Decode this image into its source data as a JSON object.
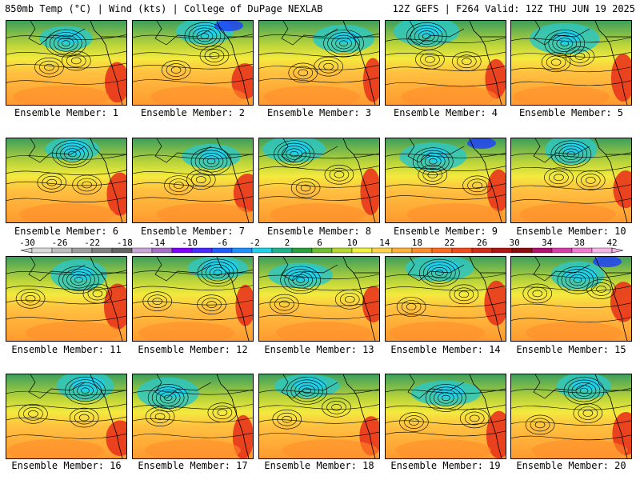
{
  "header": {
    "left_title": "850mb Temp (°C) | Wind (kts) | College of DuPage NEXLAB",
    "right_title": "12Z GEFS | F264 Valid: 12Z THU JUN 19 2025"
  },
  "colorbar": {
    "ticks": [
      "-30",
      "-26",
      "-22",
      "-18",
      "-14",
      "-10",
      "-6",
      "-2",
      "2",
      "6",
      "10",
      "14",
      "18",
      "22",
      "26",
      "30",
      "34",
      "38",
      "42"
    ],
    "colors": [
      "#d9d9d9",
      "#bdbdbd",
      "#9e9e9e",
      "#808080",
      "#646464",
      "#c9a5d6",
      "#a36fc6",
      "#8000ff",
      "#4a2aff",
      "#1e5cff",
      "#1f8fff",
      "#1fd0e6",
      "#1fb48c",
      "#2b9f3c",
      "#6fbe2f",
      "#b7d62f",
      "#f0f03c",
      "#ffd24a",
      "#ffb03a",
      "#ff8c2a",
      "#ff6a1f",
      "#f24a1a",
      "#d42a18",
      "#b01414",
      "#8a0c0c",
      "#b0106e",
      "#d63ca8",
      "#f07ad0",
      "#f5b4e6"
    ]
  },
  "members": [
    {
      "label": "Ensemble Member: 1"
    },
    {
      "label": "Ensemble Member: 2"
    },
    {
      "label": "Ensemble Member: 3"
    },
    {
      "label": "Ensemble Member: 4"
    },
    {
      "label": "Ensemble Member: 5"
    },
    {
      "label": "Ensemble Member: 6"
    },
    {
      "label": "Ensemble Member: 7"
    },
    {
      "label": "Ensemble Member: 8"
    },
    {
      "label": "Ensemble Member: 9"
    },
    {
      "label": "Ensemble Member: 10"
    },
    {
      "label": "Ensemble Member: 11"
    },
    {
      "label": "Ensemble Member: 12"
    },
    {
      "label": "Ensemble Member: 13"
    },
    {
      "label": "Ensemble Member: 14"
    },
    {
      "label": "Ensemble Member: 15"
    },
    {
      "label": "Ensemble Member: 16"
    },
    {
      "label": "Ensemble Member: 17"
    },
    {
      "label": "Ensemble Member: 18"
    },
    {
      "label": "Ensemble Member: 19"
    },
    {
      "label": "Ensemble Member: 20"
    }
  ]
}
